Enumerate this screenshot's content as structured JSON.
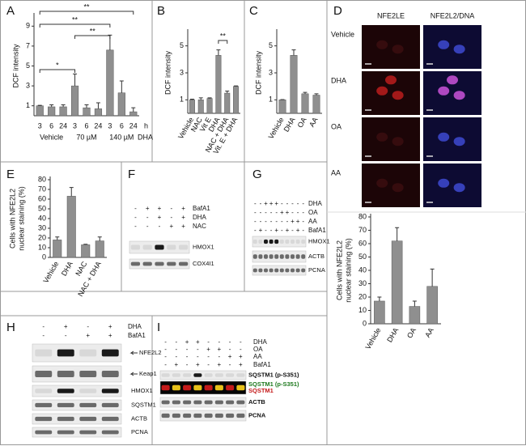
{
  "chart_data": [
    {
      "type": "bar",
      "panel": "A",
      "ylabel": [
        "DCF intensity"
      ],
      "categories": [
        "3",
        "6",
        "24",
        "3",
        "6",
        "24",
        "3",
        "6",
        "24"
      ],
      "groups": [
        "Vehicle",
        "70 µM",
        "140 µM"
      ],
      "time_unit": "h",
      "treatment": "DHA",
      "values": [
        1,
        0.9,
        0.9,
        3,
        0.8,
        0.7,
        6.6,
        2.3,
        0.4
      ],
      "errors": [
        0.05,
        0.2,
        0.2,
        1.2,
        0.3,
        0.6,
        1.5,
        1.2,
        0.4
      ],
      "ylim": [
        0,
        10
      ],
      "yticks": [
        1,
        3,
        5,
        7,
        9
      ],
      "annotations": [
        "*",
        "**",
        "**",
        "**"
      ],
      "color": "#8f8f8f"
    },
    {
      "type": "bar",
      "panel": "B",
      "ylabel": [
        "DCF intensity"
      ],
      "categories": [
        "Vehicle",
        "NAC",
        "Vit E",
        "DHA",
        "NAC + DHA",
        "Vit. E + DHA"
      ],
      "values": [
        1,
        1,
        1.1,
        4.3,
        1.5,
        2
      ],
      "errors": [
        0.05,
        0.15,
        0.05,
        0.4,
        0.15,
        0.03
      ],
      "ylim": [
        0,
        6
      ],
      "yticks": [
        1,
        3,
        5
      ],
      "annotations": [
        "**"
      ],
      "color": "#8f8f8f"
    },
    {
      "type": "bar",
      "panel": "C",
      "ylabel": [
        "DCF intensity"
      ],
      "categories": [
        "Vehicle",
        "DHA",
        "OA",
        "AA"
      ],
      "values": [
        1,
        4.3,
        1.45,
        1.35
      ],
      "errors": [
        0.02,
        0.4,
        0.1,
        0.1
      ],
      "ylim": [
        0,
        6
      ],
      "yticks": [
        1,
        3,
        5
      ],
      "color": "#8f8f8f"
    },
    {
      "type": "bar",
      "ylabel": [
        "Cells with NFE2L2",
        "nuclear staining (%)"
      ],
      "categories": [
        "Vehicle",
        "DHA",
        "OA",
        "AA"
      ],
      "values": [
        17,
        62,
        13,
        28
      ],
      "errors": [
        3,
        10,
        4,
        13
      ],
      "ylim": [
        0,
        80
      ],
      "yticks": [
        0,
        10,
        20,
        30,
        40,
        50,
        60,
        70,
        80
      ],
      "color": "#8f8f8f"
    },
    {
      "type": "bar",
      "panel": "E",
      "ylabel": [
        "Cells with NFE2L2",
        "nuclear staining (%)"
      ],
      "categories": [
        "Vehicle",
        "DHA",
        "NAC",
        "NAC + DHA"
      ],
      "values": [
        18,
        63,
        13,
        17
      ],
      "errors": [
        3,
        9,
        0.5,
        4
      ],
      "ylim": [
        0,
        80
      ],
      "yticks": [
        0,
        10,
        20,
        30,
        40,
        50,
        60,
        70,
        80
      ],
      "color": "#8f8f8f"
    }
  ],
  "micrographs": {
    "panel": "D",
    "columns": [
      "NFE2LE",
      "NFE2L2/DNA"
    ],
    "rows": [
      "Vehicle",
      "DHA",
      "OA",
      "AA"
    ]
  },
  "blots": [
    {
      "panel": "F",
      "conditions": [
        {
          "name": "BafA1",
          "signs": [
            "-",
            "+",
            "+",
            "-",
            "+"
          ]
        },
        {
          "name": "DHA",
          "signs": [
            "-",
            "-",
            "+",
            "-",
            "+"
          ]
        },
        {
          "name": "NAC",
          "signs": [
            "-",
            "-",
            "-",
            "+",
            "+"
          ]
        }
      ],
      "proteins": [
        "HMOX1",
        "COX4I1"
      ]
    },
    {
      "panel": "G",
      "conditions": [
        {
          "name": "DHA",
          "signs": [
            "-",
            "-",
            "+",
            "+",
            "+",
            "-",
            "-",
            "-",
            "-",
            "-"
          ]
        },
        {
          "name": "OA",
          "signs": [
            "-",
            "-",
            "-",
            "-",
            "-",
            "+",
            "+",
            "-",
            "-",
            "-"
          ]
        },
        {
          "name": "AA",
          "signs": [
            "-",
            "-",
            "-",
            "-",
            "-",
            "-",
            "-",
            "+",
            "+",
            "-"
          ]
        },
        {
          "name": "BafA1",
          "signs": [
            "-",
            "+",
            "-",
            "-",
            "+",
            "-",
            "+",
            "-",
            "+",
            "-"
          ]
        }
      ],
      "proteins": [
        "HMOX1",
        "ACTB",
        "PCNA"
      ]
    },
    {
      "panel": "H",
      "conditions": [
        {
          "name": "DHA",
          "signs": [
            "-",
            "+",
            "-",
            "+"
          ]
        },
        {
          "name": "BafA1",
          "signs": [
            "-",
            "-",
            "+",
            "+"
          ]
        }
      ],
      "proteins": [
        "NFE2L2",
        "Keap1",
        "HMOX1",
        "SQSTM1",
        "ACTB",
        "PCNA"
      ]
    },
    {
      "panel": "I",
      "conditions": [
        {
          "name": "DHA",
          "signs": [
            "-",
            "-",
            "+",
            "+",
            "-",
            "-",
            "-",
            "-"
          ]
        },
        {
          "name": "OA",
          "signs": [
            "-",
            "-",
            "-",
            "-",
            "+",
            "+",
            "-",
            "-"
          ]
        },
        {
          "name": "AA",
          "signs": [
            "-",
            "-",
            "-",
            "-",
            "-",
            "-",
            "+",
            "+"
          ]
        },
        {
          "name": "BafA1",
          "signs": [
            "-",
            "+",
            "-",
            "+",
            "-",
            "+",
            "-",
            "+"
          ]
        }
      ],
      "proteins": [
        "SQSTM1 (p-S351)",
        "SQSTM1 (p-S351)",
        "SQSTM1",
        "ACTB",
        "PCNA"
      ],
      "protein_colors": [
        "#111111",
        "#1f7a1f",
        "#c41a1a",
        "#111111",
        "#111111"
      ]
    }
  ]
}
